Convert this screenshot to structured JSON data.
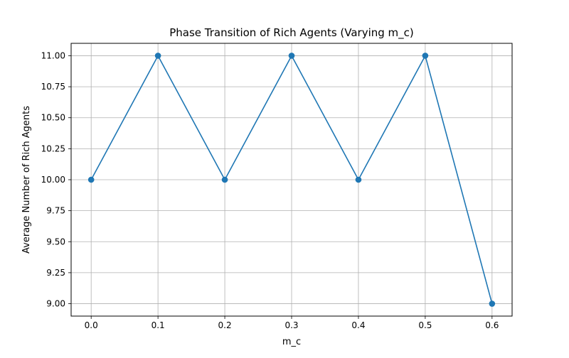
{
  "chart_data": {
    "type": "line",
    "title": "Phase Transition of Rich Agents (Varying m_c)",
    "xlabel": "m_c",
    "ylabel": "Average Number of Rich Agents",
    "x": [
      0.0,
      0.1,
      0.2,
      0.3,
      0.4,
      0.5,
      0.6
    ],
    "series": [
      {
        "name": "",
        "values": [
          10.0,
          11.0,
          10.0,
          11.0,
          10.0,
          11.0,
          9.0
        ],
        "color": "#1f77b4",
        "marker": "circle"
      }
    ],
    "xlim": [
      -0.03,
      0.63
    ],
    "ylim": [
      8.9,
      11.1
    ],
    "xticks": [
      "0.0",
      "0.1",
      "0.2",
      "0.3",
      "0.4",
      "0.5",
      "0.6"
    ],
    "yticks": [
      "9.00",
      "9.25",
      "9.50",
      "9.75",
      "10.00",
      "10.25",
      "10.50",
      "10.75",
      "11.00"
    ],
    "grid": true,
    "legend": "none"
  },
  "colors": {
    "line": "#1f77b4",
    "grid": "#b0b0b0",
    "axis": "#000000",
    "background": "#ffffff"
  }
}
